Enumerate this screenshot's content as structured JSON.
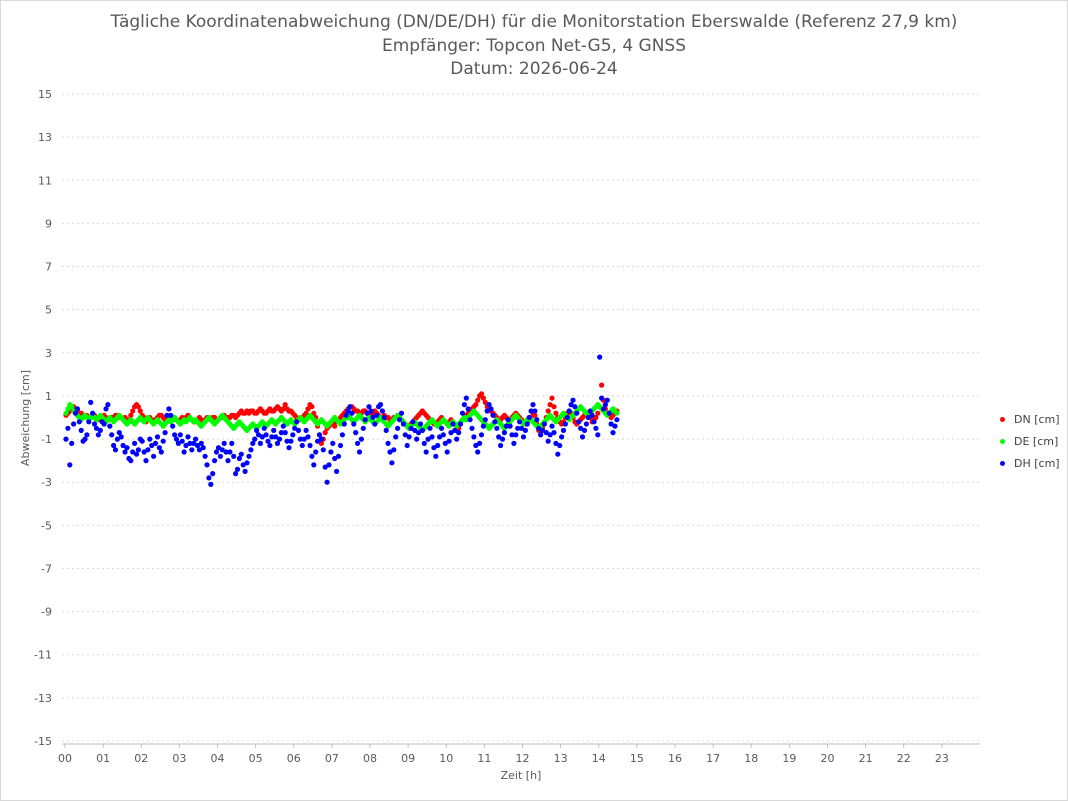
{
  "titles": {
    "line1": "Tägliche Koordinatenabweichung (DN/DE/DH) für die Monitorstation Eberswalde (Referenz 27,9 km)",
    "line2": "Empfänger: Topcon Net-G5, 4 GNSS",
    "line3": "Datum: 2026-06-24"
  },
  "chart_data": {
    "type": "scatter",
    "xlabel": "Zeit [h]",
    "ylabel": "Abweichung [cm]",
    "xlim": [
      0,
      24
    ],
    "ylim": [
      -15,
      15
    ],
    "x_ticks": [
      "00",
      "01",
      "02",
      "03",
      "04",
      "05",
      "06",
      "07",
      "08",
      "09",
      "10",
      "11",
      "12",
      "13",
      "14",
      "15",
      "16",
      "17",
      "18",
      "19",
      "20",
      "21",
      "22",
      "23"
    ],
    "y_ticks": [
      15,
      13,
      11,
      9,
      7,
      5,
      3,
      1,
      -1,
      -3,
      -5,
      -7,
      -9,
      -11,
      -13,
      -15
    ],
    "grid": "horizontal dotted",
    "legend_position": "right",
    "sample_interval_h": 0.05,
    "series": [
      {
        "name": "DN [cm]",
        "color": "#ff0000",
        "values": [
          0.1,
          0.2,
          0.3,
          0.4,
          0.5,
          0.4,
          0.3,
          0.2,
          0.2,
          0.1,
          0.1,
          0.1,
          0.0,
          0.0,
          0.1,
          0.1,
          0.0,
          -0.1,
          0.0,
          0.0,
          0.1,
          0.0,
          -0.1,
          -0.1,
          0.0,
          0.0,
          0.1,
          0.1,
          0.0,
          0.0,
          -0.1,
          0.0,
          -0.1,
          -0.1,
          0.1,
          0.3,
          0.5,
          0.6,
          0.5,
          0.3,
          0.1,
          0.0,
          -0.2,
          -0.1,
          0.0,
          -0.1,
          -0.2,
          -0.1,
          0.0,
          0.1,
          0.1,
          0.0,
          -0.1,
          -0.1,
          0.0,
          0.0,
          0.0,
          -0.1,
          -0.1,
          -0.2,
          -0.1,
          0.0,
          -0.1,
          0.0,
          0.1,
          0.0,
          -0.1,
          -0.2,
          -0.2,
          -0.1,
          0.0,
          -0.1,
          -0.2,
          -0.1,
          0.0,
          0.0,
          -0.1,
          0.0,
          0.0,
          -0.1,
          -0.1,
          0.0,
          0.0,
          0.1,
          0.0,
          0.0,
          0.0,
          0.1,
          0.1,
          0.0,
          0.1,
          0.2,
          0.3,
          0.2,
          0.2,
          0.3,
          0.2,
          0.3,
          0.3,
          0.2,
          0.2,
          0.3,
          0.4,
          0.3,
          0.2,
          0.2,
          0.3,
          0.4,
          0.3,
          0.3,
          0.4,
          0.5,
          0.4,
          0.3,
          0.4,
          0.6,
          0.4,
          0.3,
          0.3,
          0.2,
          0.1,
          0.0,
          -0.1,
          -0.1,
          0.0,
          0.1,
          0.2,
          0.4,
          0.6,
          0.5,
          0.2,
          0.0,
          -0.4,
          -0.8,
          -1.2,
          -1.0,
          -0.7,
          -0.5,
          -0.4,
          -0.3,
          -0.3,
          -0.4,
          -0.2,
          -0.1,
          0.0,
          0.1,
          0.2,
          0.3,
          0.4,
          0.5,
          0.5,
          0.4,
          0.3,
          0.3,
          0.2,
          0.2,
          0.3,
          0.3,
          0.2,
          0.1,
          0.1,
          0.2,
          0.3,
          0.2,
          0.1,
          0.0,
          0.0,
          0.1,
          0.0,
          0.0,
          -0.1,
          -0.1,
          0.0,
          0.0,
          0.1,
          0.0,
          -0.1,
          -0.2,
          -0.3,
          -0.4,
          -0.5,
          -0.3,
          -0.2,
          -0.1,
          0.0,
          0.1,
          0.2,
          0.3,
          0.2,
          0.1,
          0.0,
          -0.1,
          -0.2,
          -0.3,
          -0.3,
          -0.2,
          -0.1,
          0.0,
          -0.1,
          -0.2,
          -0.3,
          -0.2,
          -0.1,
          -0.2,
          -0.3,
          -0.4,
          -0.5,
          -0.3,
          -0.1,
          0.0,
          0.1,
          0.2,
          0.3,
          0.4,
          0.5,
          0.6,
          0.8,
          1.0,
          1.1,
          0.9,
          0.7,
          0.5,
          0.4,
          0.3,
          0.2,
          0.1,
          0.0,
          -0.1,
          -0.1,
          0.0,
          0.1,
          0.0,
          -0.1,
          -0.1,
          0.0,
          0.1,
          0.2,
          0.1,
          0.0,
          -0.1,
          -0.2,
          -0.3,
          -0.2,
          -0.1,
          0.0,
          0.2,
          0.1,
          -0.3,
          -0.6,
          -0.8,
          -0.5,
          -0.2,
          0.0,
          0.3,
          0.6,
          0.9,
          0.5,
          0.2,
          0.0,
          -0.2,
          -0.3,
          -0.2,
          0.0,
          0.2,
          0.3,
          0.2,
          0.0,
          -0.2,
          -0.3,
          -0.2,
          -0.1,
          0.0,
          0.1,
          0.2,
          0.1,
          0.0,
          -0.2,
          -0.1,
          0.0,
          0.2,
          0.5,
          1.5,
          0.8,
          0.4,
          0.2,
          0.1,
          0.0,
          0.1,
          0.2,
          0.3
        ]
      },
      {
        "name": "DE [cm]",
        "color": "#00ff00",
        "values": [
          0.2,
          0.4,
          0.6,
          0.5,
          0.3,
          0.2,
          0.1,
          0.0,
          -0.1,
          0.0,
          0.1,
          0.0,
          -0.1,
          0.0,
          0.1,
          0.0,
          -0.1,
          0.0,
          0.1,
          0.0,
          -0.1,
          -0.2,
          -0.1,
          0.0,
          -0.1,
          -0.2,
          -0.1,
          0.0,
          0.1,
          0.0,
          -0.1,
          -0.2,
          -0.3,
          -0.2,
          -0.1,
          -0.2,
          -0.3,
          -0.2,
          -0.1,
          0.0,
          -0.1,
          -0.2,
          -0.1,
          0.0,
          -0.1,
          -0.2,
          -0.3,
          -0.2,
          -0.1,
          -0.2,
          -0.3,
          -0.4,
          -0.3,
          -0.2,
          -0.1,
          -0.2,
          -0.1,
          0.0,
          -0.1,
          -0.2,
          -0.3,
          -0.2,
          -0.1,
          -0.2,
          -0.1,
          0.0,
          -0.1,
          -0.2,
          -0.1,
          -0.2,
          -0.3,
          -0.4,
          -0.3,
          -0.2,
          -0.1,
          0.0,
          -0.1,
          -0.2,
          -0.3,
          -0.2,
          -0.1,
          0.0,
          0.1,
          0.0,
          -0.1,
          -0.2,
          -0.3,
          -0.4,
          -0.5,
          -0.4,
          -0.3,
          -0.2,
          -0.3,
          -0.4,
          -0.5,
          -0.6,
          -0.5,
          -0.4,
          -0.3,
          -0.4,
          -0.5,
          -0.4,
          -0.3,
          -0.2,
          -0.3,
          -0.4,
          -0.3,
          -0.2,
          -0.1,
          -0.2,
          -0.3,
          -0.2,
          -0.1,
          0.0,
          -0.1,
          -0.2,
          -0.3,
          -0.2,
          -0.1,
          -0.2,
          -0.3,
          -0.2,
          -0.1,
          0.0,
          -0.1,
          -0.2,
          -0.1,
          0.0,
          0.1,
          0.0,
          -0.1,
          -0.2,
          -0.3,
          -0.2,
          -0.1,
          -0.2,
          -0.3,
          -0.4,
          -0.3,
          -0.2,
          -0.1,
          0.0,
          -0.1,
          -0.2,
          -0.3,
          -0.2,
          -0.1,
          0.0,
          0.1,
          0.0,
          -0.1,
          -0.2,
          -0.1,
          0.0,
          0.1,
          0.0,
          -0.1,
          -0.2,
          -0.1,
          0.0,
          -0.1,
          -0.2,
          -0.3,
          -0.2,
          -0.1,
          0.0,
          -0.1,
          -0.2,
          -0.3,
          -0.4,
          -0.3,
          -0.2,
          -0.1,
          0.0,
          0.1,
          0.0,
          -0.1,
          -0.2,
          -0.3,
          -0.4,
          -0.5,
          -0.4,
          -0.3,
          -0.2,
          -0.3,
          -0.4,
          -0.5,
          -0.6,
          -0.5,
          -0.4,
          -0.3,
          -0.2,
          -0.1,
          -0.2,
          -0.3,
          -0.4,
          -0.3,
          -0.2,
          -0.1,
          -0.2,
          -0.3,
          -0.4,
          -0.3,
          -0.2,
          -0.3,
          -0.4,
          -0.3,
          -0.2,
          -0.1,
          0.0,
          -0.1,
          0.0,
          0.1,
          0.2,
          0.3,
          0.2,
          0.1,
          0.0,
          -0.1,
          -0.2,
          -0.3,
          -0.4,
          -0.5,
          -0.4,
          -0.3,
          -0.2,
          -0.1,
          -0.2,
          -0.3,
          -0.4,
          -0.5,
          -0.4,
          -0.3,
          -0.2,
          -0.1,
          0.0,
          0.1,
          0.0,
          -0.1,
          -0.2,
          -0.3,
          -0.2,
          -0.1,
          0.0,
          -0.1,
          -0.2,
          -0.3,
          -0.4,
          -0.5,
          -0.4,
          -0.3,
          -0.2,
          -0.1,
          0.0,
          0.1,
          0.0,
          -0.1,
          -0.2,
          -0.1,
          0.0,
          0.1,
          0.2,
          0.1,
          0.0,
          -0.1,
          0.0,
          0.1,
          0.2,
          0.3,
          0.4,
          0.5,
          0.4,
          0.3,
          0.2,
          0.1,
          0.2,
          0.3,
          0.4,
          0.5,
          0.6,
          0.5,
          0.4,
          0.3,
          0.2,
          0.1,
          0.2,
          0.3,
          0.4,
          0.3,
          0.2
        ]
      },
      {
        "name": "DH [cm]",
        "color": "#0000ff",
        "values": [
          -1.0,
          -0.5,
          -2.2,
          -1.2,
          -0.3,
          0.2,
          0.4,
          -0.2,
          -0.6,
          -1.1,
          -1.0,
          -0.8,
          -0.2,
          0.7,
          0.2,
          -0.3,
          -0.5,
          -0.8,
          -0.6,
          -0.2,
          -0.3,
          0.4,
          0.6,
          -0.4,
          -0.8,
          -1.3,
          -1.5,
          -1.0,
          -0.7,
          -0.9,
          -1.3,
          -1.6,
          -1.4,
          -1.9,
          -2.0,
          -1.6,
          -1.2,
          -1.7,
          -1.5,
          -1.0,
          -1.1,
          -1.6,
          -2.0,
          -1.5,
          -1.0,
          -1.3,
          -1.8,
          -1.2,
          -0.9,
          -1.4,
          -1.6,
          -1.1,
          -0.7,
          0.1,
          0.4,
          0.1,
          -0.4,
          -0.8,
          -1.0,
          -1.2,
          -0.8,
          -1.1,
          -1.6,
          -1.3,
          -0.9,
          -1.2,
          -1.5,
          -1.2,
          -1.0,
          -1.3,
          -1.5,
          -1.2,
          -1.4,
          -1.8,
          -2.2,
          -2.8,
          -3.1,
          -2.6,
          -2.0,
          -1.6,
          -1.4,
          -1.8,
          -1.5,
          -1.2,
          -1.6,
          -2.0,
          -1.6,
          -1.2,
          -1.8,
          -2.6,
          -2.4,
          -1.9,
          -1.7,
          -2.2,
          -2.5,
          -2.1,
          -1.8,
          -1.5,
          -1.2,
          -1.0,
          -0.6,
          -0.8,
          -1.2,
          -0.9,
          -0.5,
          -0.8,
          -1.1,
          -1.3,
          -0.9,
          -0.6,
          -0.9,
          -1.2,
          -1.0,
          -0.7,
          -0.4,
          -0.7,
          -1.1,
          -1.4,
          -1.1,
          -0.8,
          -0.5,
          -0.2,
          -0.6,
          -1.0,
          -1.3,
          -1.0,
          -0.6,
          -0.9,
          -1.3,
          -1.8,
          -2.2,
          -1.6,
          -1.1,
          -0.8,
          -1.0,
          -1.5,
          -2.3,
          -3.0,
          -2.2,
          -1.6,
          -1.2,
          -1.9,
          -2.5,
          -1.8,
          -1.3,
          -0.8,
          -0.3,
          0.1,
          0.3,
          0.5,
          0.2,
          -0.3,
          -0.7,
          -1.2,
          -1.6,
          -1.0,
          -0.5,
          -0.1,
          0.2,
          0.5,
          0.3,
          0.0,
          -0.3,
          0.1,
          0.5,
          0.6,
          0.3,
          0.0,
          -0.6,
          -1.2,
          -1.6,
          -2.1,
          -1.5,
          -0.9,
          -0.5,
          -0.1,
          0.2,
          -0.3,
          -0.8,
          -1.3,
          -0.9,
          -0.5,
          -0.2,
          -0.6,
          -1.0,
          -0.7,
          -0.3,
          -0.6,
          -1.2,
          -1.6,
          -1.0,
          -0.5,
          -0.9,
          -1.4,
          -1.8,
          -1.3,
          -0.9,
          -0.5,
          -0.8,
          -1.2,
          -1.6,
          -1.1,
          -0.7,
          -0.3,
          -0.6,
          -1.0,
          -0.7,
          -0.3,
          0.2,
          0.6,
          0.9,
          0.4,
          -0.1,
          -0.5,
          -0.9,
          -1.3,
          -1.6,
          -1.2,
          -0.8,
          -0.4,
          -0.1,
          0.3,
          0.6,
          0.4,
          0.1,
          -0.2,
          -0.5,
          -0.9,
          -1.3,
          -1.0,
          -0.7,
          -0.4,
          -0.1,
          -0.4,
          -0.8,
          -1.2,
          -0.8,
          -0.5,
          -0.2,
          -0.5,
          -0.9,
          -0.6,
          -0.3,
          0.0,
          0.3,
          0.6,
          0.3,
          -0.1,
          -0.5,
          -0.8,
          -0.6,
          -0.3,
          -0.7,
          -1.1,
          -0.8,
          -0.4,
          -0.7,
          -1.2,
          -1.7,
          -1.3,
          -0.9,
          -0.6,
          -0.3,
          0.0,
          0.3,
          0.6,
          0.8,
          0.5,
          0.2,
          -0.2,
          -0.5,
          -0.9,
          -0.6,
          -0.3,
          0.0,
          0.3,
          0.1,
          -0.2,
          -0.5,
          -0.8,
          2.8,
          0.9,
          0.4,
          0.6,
          0.8,
          0.2,
          -0.3,
          -0.7,
          -0.4,
          -0.1
        ]
      }
    ]
  }
}
